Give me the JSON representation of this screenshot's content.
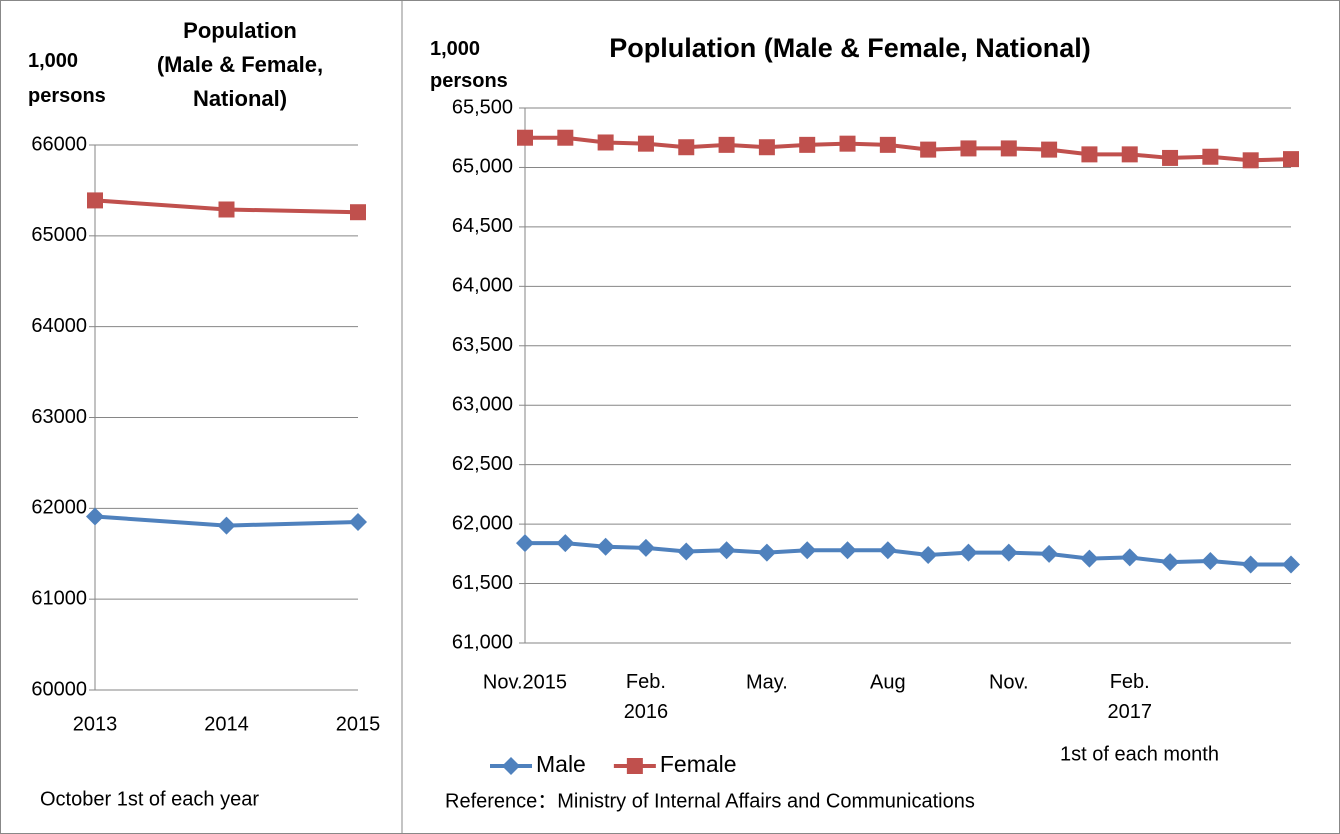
{
  "chart_data": [
    {
      "type": "line",
      "title": "Population\n(Male & Female,\nNational)",
      "y_label": "1,000\npersons",
      "note": "October 1st of each year",
      "categories": [
        "2013",
        "2014",
        "2015"
      ],
      "series": [
        {
          "name": "Male",
          "color": "#4f81bd",
          "marker": "diamond",
          "values": [
            61910,
            61810,
            61850
          ]
        },
        {
          "name": "Female",
          "color": "#c0504d",
          "marker": "square",
          "values": [
            65390,
            65290,
            65260
          ]
        }
      ],
      "ylim": [
        60000,
        66000
      ],
      "yticks": [
        60000,
        61000,
        62000,
        63000,
        64000,
        65000,
        66000
      ],
      "grid": true,
      "legend": false
    },
    {
      "type": "line",
      "title": "Poplulation (Male & Female, National)",
      "y_label": "1,000\npersons",
      "note": "1st of each month",
      "source": "Reference：Ministry of Internal Affairs and Communications",
      "categories": [
        "Nov.2015",
        null,
        null,
        "Feb.\n2016",
        null,
        null,
        "May.",
        null,
        null,
        "Aug",
        null,
        null,
        "Nov.",
        null,
        null,
        "Feb.\n2017",
        null,
        null,
        null,
        null
      ],
      "series": [
        {
          "name": "Male",
          "color": "#4f81bd",
          "marker": "diamond",
          "values": [
            61840,
            61840,
            61810,
            61800,
            61770,
            61780,
            61760,
            61780,
            61780,
            61780,
            61740,
            61760,
            61760,
            61750,
            61710,
            61720,
            61680,
            61690,
            61660,
            61660
          ]
        },
        {
          "name": "Female",
          "color": "#c0504d",
          "marker": "square",
          "values": [
            65250,
            65250,
            65210,
            65200,
            65170,
            65190,
            65170,
            65190,
            65200,
            65190,
            65150,
            65160,
            65160,
            65150,
            65110,
            65110,
            65080,
            65090,
            65060,
            65070
          ]
        }
      ],
      "ylim": [
        61000,
        65500
      ],
      "yticks": [
        {
          "value": 61000,
          "label": "61,000"
        },
        {
          "value": 61500,
          "label": "61,500"
        },
        {
          "value": 62000,
          "label": "62,000"
        },
        {
          "value": 62500,
          "label": "62,500"
        },
        {
          "value": 63000,
          "label": "63,000"
        },
        {
          "value": 63500,
          "label": "63,500"
        },
        {
          "value": 64000,
          "label": "64,000"
        },
        {
          "value": 64500,
          "label": "64,500"
        },
        {
          "value": 65000,
          "label": "65,000"
        },
        {
          "value": 65500,
          "label": "65,500"
        }
      ],
      "grid": true,
      "legend": "bottom-left"
    }
  ]
}
